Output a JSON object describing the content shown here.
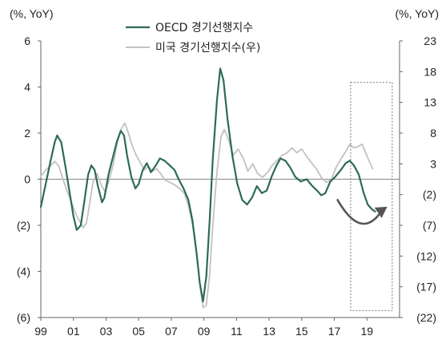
{
  "chart_data": {
    "type": "line",
    "title": "",
    "xlabel": "",
    "left_axis": {
      "unit": "(%, YoY)",
      "ylim": [
        -6,
        6
      ],
      "ticks": [
        6,
        4,
        2,
        0,
        -2,
        -4,
        -6
      ],
      "tick_labels": [
        "6",
        "4",
        "2",
        "0",
        "(2)",
        "(4)",
        "(6)"
      ]
    },
    "right_axis": {
      "unit": "(%, YoY)",
      "ylim": [
        -22,
        23
      ],
      "ticks": [
        23,
        18,
        13,
        8,
        3,
        -2,
        -7,
        -12,
        -17,
        -22
      ],
      "tick_labels": [
        "23",
        "18",
        "13",
        "8",
        "3",
        "(2)",
        "(7)",
        "(12)",
        "(17)",
        "(22)"
      ]
    },
    "x_axis": {
      "xlim": [
        1999,
        2021
      ],
      "ticks": [
        1999,
        2001,
        2003,
        2005,
        2007,
        2009,
        2011,
        2013,
        2015,
        2017,
        2019
      ],
      "tick_labels": [
        "99",
        "01",
        "03",
        "05",
        "07",
        "09",
        "11",
        "13",
        "15",
        "17",
        "19"
      ]
    },
    "grid": false,
    "legend_position": "top-center",
    "series": [
      {
        "name": "OECD 경기선행지수",
        "axis": "left",
        "color": "#2e6b55",
        "points": [
          [
            1999.0,
            -1.2
          ],
          [
            1999.3,
            -0.2
          ],
          [
            1999.6,
            0.8
          ],
          [
            1999.85,
            1.6
          ],
          [
            2000.0,
            1.9
          ],
          [
            2000.25,
            1.6
          ],
          [
            2000.5,
            0.6
          ],
          [
            2000.75,
            -0.5
          ],
          [
            2001.0,
            -1.6
          ],
          [
            2001.2,
            -2.2
          ],
          [
            2001.45,
            -2.0
          ],
          [
            2001.7,
            -0.8
          ],
          [
            2001.9,
            0.2
          ],
          [
            2002.1,
            0.6
          ],
          [
            2002.3,
            0.4
          ],
          [
            2002.5,
            -0.3
          ],
          [
            2002.75,
            -1.0
          ],
          [
            2002.9,
            -0.8
          ],
          [
            2003.15,
            0.2
          ],
          [
            2003.4,
            0.9
          ],
          [
            2003.65,
            1.6
          ],
          [
            2003.9,
            2.1
          ],
          [
            2004.1,
            1.9
          ],
          [
            2004.3,
            1.0
          ],
          [
            2004.55,
            0.1
          ],
          [
            2004.8,
            -0.4
          ],
          [
            2005.0,
            -0.2
          ],
          [
            2005.25,
            0.4
          ],
          [
            2005.5,
            0.7
          ],
          [
            2005.75,
            0.3
          ],
          [
            2006.05,
            0.6
          ],
          [
            2006.3,
            0.9
          ],
          [
            2006.6,
            0.8
          ],
          [
            2006.9,
            0.6
          ],
          [
            2007.2,
            0.4
          ],
          [
            2007.45,
            0.0
          ],
          [
            2007.75,
            -0.4
          ],
          [
            2008.05,
            -0.9
          ],
          [
            2008.3,
            -1.8
          ],
          [
            2008.55,
            -3.2
          ],
          [
            2008.75,
            -4.5
          ],
          [
            2008.95,
            -5.3
          ],
          [
            2009.15,
            -4.2
          ],
          [
            2009.35,
            -1.8
          ],
          [
            2009.55,
            0.9
          ],
          [
            2009.8,
            3.4
          ],
          [
            2010.0,
            4.8
          ],
          [
            2010.2,
            4.3
          ],
          [
            2010.45,
            2.6
          ],
          [
            2010.75,
            1.0
          ],
          [
            2011.05,
            -0.2
          ],
          [
            2011.35,
            -0.9
          ],
          [
            2011.65,
            -1.1
          ],
          [
            2011.95,
            -0.8
          ],
          [
            2012.25,
            -0.3
          ],
          [
            2012.55,
            -0.6
          ],
          [
            2012.85,
            -0.5
          ],
          [
            2013.15,
            0.1
          ],
          [
            2013.45,
            0.6
          ],
          [
            2013.7,
            0.9
          ],
          [
            2014.0,
            0.8
          ],
          [
            2014.3,
            0.5
          ],
          [
            2014.6,
            0.1
          ],
          [
            2014.95,
            -0.1
          ],
          [
            2015.3,
            0.0
          ],
          [
            2015.65,
            -0.3
          ],
          [
            2015.95,
            -0.5
          ],
          [
            2016.2,
            -0.7
          ],
          [
            2016.45,
            -0.6
          ],
          [
            2016.75,
            -0.1
          ],
          [
            2017.05,
            0.1
          ],
          [
            2017.4,
            0.4
          ],
          [
            2017.7,
            0.7
          ],
          [
            2017.95,
            0.8
          ],
          [
            2018.2,
            0.6
          ],
          [
            2018.5,
            0.2
          ],
          [
            2018.8,
            -0.6
          ],
          [
            2019.05,
            -1.1
          ],
          [
            2019.3,
            -1.3
          ],
          [
            2019.5,
            -1.4
          ]
        ]
      },
      {
        "name": "미국 경기선행지수(우)",
        "axis": "right",
        "color": "#c2c2c2",
        "points": [
          [
            1999.0,
            1.0
          ],
          [
            1999.3,
            2.0
          ],
          [
            1999.6,
            2.7
          ],
          [
            1999.85,
            3.4
          ],
          [
            2000.1,
            2.6
          ],
          [
            2000.35,
            0.6
          ],
          [
            2000.6,
            -1.4
          ],
          [
            2000.9,
            -3.4
          ],
          [
            2001.15,
            -5.2
          ],
          [
            2001.4,
            -6.4
          ],
          [
            2001.6,
            -7.4
          ],
          [
            2001.8,
            -6.6
          ],
          [
            2002.0,
            -3.4
          ],
          [
            2002.2,
            0.0
          ],
          [
            2002.45,
            1.4
          ],
          [
            2002.7,
            -0.4
          ],
          [
            2002.95,
            -1.6
          ],
          [
            2003.2,
            0.4
          ],
          [
            2003.45,
            3.0
          ],
          [
            2003.7,
            6.6
          ],
          [
            2003.95,
            8.8
          ],
          [
            2004.15,
            9.6
          ],
          [
            2004.35,
            8.2
          ],
          [
            2004.6,
            6.0
          ],
          [
            2004.85,
            4.4
          ],
          [
            2005.1,
            3.2
          ],
          [
            2005.35,
            2.0
          ],
          [
            2005.6,
            2.6
          ],
          [
            2005.85,
            1.8
          ],
          [
            2006.1,
            2.2
          ],
          [
            2006.35,
            1.4
          ],
          [
            2006.6,
            0.4
          ],
          [
            2006.9,
            0.0
          ],
          [
            2007.2,
            -0.4
          ],
          [
            2007.5,
            -1.0
          ],
          [
            2007.8,
            -1.8
          ],
          [
            2008.05,
            -3.8
          ],
          [
            2008.3,
            -6.8
          ],
          [
            2008.55,
            -11.6
          ],
          [
            2008.8,
            -17.6
          ],
          [
            2008.95,
            -20.4
          ],
          [
            2009.15,
            -20.0
          ],
          [
            2009.35,
            -15.0
          ],
          [
            2009.55,
            -7.0
          ],
          [
            2009.8,
            1.6
          ],
          [
            2010.05,
            7.4
          ],
          [
            2010.25,
            8.6
          ],
          [
            2010.5,
            7.0
          ],
          [
            2010.8,
            4.4
          ],
          [
            2011.1,
            5.4
          ],
          [
            2011.4,
            4.0
          ],
          [
            2011.7,
            1.8
          ],
          [
            2012.0,
            3.0
          ],
          [
            2012.3,
            1.4
          ],
          [
            2012.6,
            0.8
          ],
          [
            2012.9,
            1.6
          ],
          [
            2013.2,
            2.8
          ],
          [
            2013.5,
            3.6
          ],
          [
            2013.8,
            4.4
          ],
          [
            2014.1,
            4.8
          ],
          [
            2014.4,
            5.6
          ],
          [
            2014.7,
            4.8
          ],
          [
            2015.0,
            5.4
          ],
          [
            2015.3,
            4.2
          ],
          [
            2015.6,
            3.2
          ],
          [
            2015.9,
            2.2
          ],
          [
            2016.2,
            0.8
          ],
          [
            2016.5,
            0.0
          ],
          [
            2016.8,
            0.4
          ],
          [
            2017.1,
            2.4
          ],
          [
            2017.4,
            3.8
          ],
          [
            2017.7,
            5.0
          ],
          [
            2017.95,
            6.2
          ],
          [
            2018.2,
            5.6
          ],
          [
            2018.45,
            5.8
          ],
          [
            2018.7,
            6.2
          ],
          [
            2018.95,
            4.6
          ],
          [
            2019.15,
            3.4
          ],
          [
            2019.35,
            2.2
          ]
        ]
      }
    ],
    "annotations": [
      {
        "type": "dotted-box",
        "x_from": 2018.0,
        "x_to": 2020.55,
        "left_y_from": -5.7,
        "left_y_to": 4.2
      },
      {
        "type": "curved-arrow",
        "color": "#555555",
        "from": [
          2017.2,
          -0.9
        ],
        "to": [
          2020.0,
          -1.3
        ]
      }
    ]
  }
}
